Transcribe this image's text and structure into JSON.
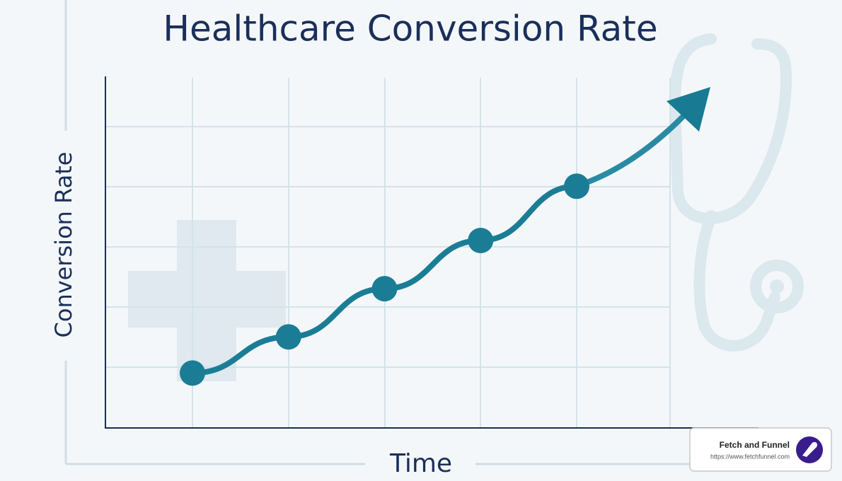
{
  "chart_data": {
    "type": "line",
    "title": "Healthcare Conversion Rate",
    "x_label": "Time",
    "y_label": "Conversion Rate",
    "categories": [
      null,
      null,
      null,
      null,
      null
    ],
    "values": [
      0.9,
      1.5,
      2.3,
      3.1,
      4.0
    ],
    "color": "#1b7d95",
    "ylim": [
      0,
      5.8
    ],
    "grid": true
  },
  "watermark": {
    "name": "Fetch and Funnel",
    "url": "https://www.fetchfunnel.com"
  }
}
